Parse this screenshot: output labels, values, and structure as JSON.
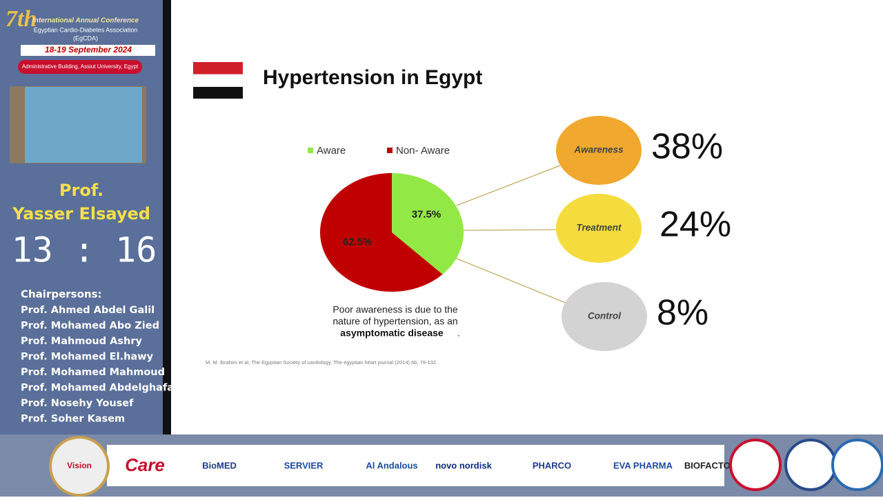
{
  "sidebar": {
    "edition": "7th",
    "conference": "International Annual Conference",
    "association": "Egyptian Cardio-Diabetes Association",
    "acronym": "(EgCDA)",
    "dates": "18-19 September 2024",
    "venue": "Administrative Building, Assiut University, Egypt",
    "speaker_title": "Prof.",
    "speaker_name": "Yasser Elsayed",
    "timer": "13 : 16",
    "chairs_heading": "Chairpersons:",
    "chairs": [
      "Prof. Ahmed Abdel Galil",
      "Prof. Mohamed Abo Zied",
      "Prof. Mahmoud Ashry",
      "Prof. Mohamed El.hawy",
      "Prof. Mohamed Mahmoud",
      "Prof. Mohamed Abdelghafar",
      "Prof. Nosehy Yousef",
      "Prof. Soher Kasem"
    ]
  },
  "slide": {
    "title": "Hypertension in Egypt",
    "stats": [
      {
        "label": "Awareness",
        "value": "38%"
      },
      {
        "label": "Treatment",
        "value": "24%"
      },
      {
        "label": "Control",
        "value": "8%"
      }
    ],
    "note": [
      "Poor awareness is due to the",
      "nature of hypertension, as an",
      "asymptomatic disease",
      "."
    ],
    "citation": "M. M. Ibrahim et al, The Egyptian Society of cardiology, The egyptian heart journal (2014) 66, 79-132."
  },
  "chart_data": {
    "type": "pie",
    "categories": [
      "Aware",
      "Non- Aware"
    ],
    "values": [
      37.5,
      62.5
    ],
    "value_labels": [
      "37.5%",
      "62.5%"
    ],
    "colors": [
      "#92e845",
      "#c00000"
    ],
    "legend": "top"
  },
  "sponsors": [
    "Vision",
    "Care",
    "BioMED",
    "SERVIER",
    "Al Andalous",
    "novo nordisk",
    "PHARCO",
    "EVA PHARMA",
    "BIOFACTOR"
  ]
}
